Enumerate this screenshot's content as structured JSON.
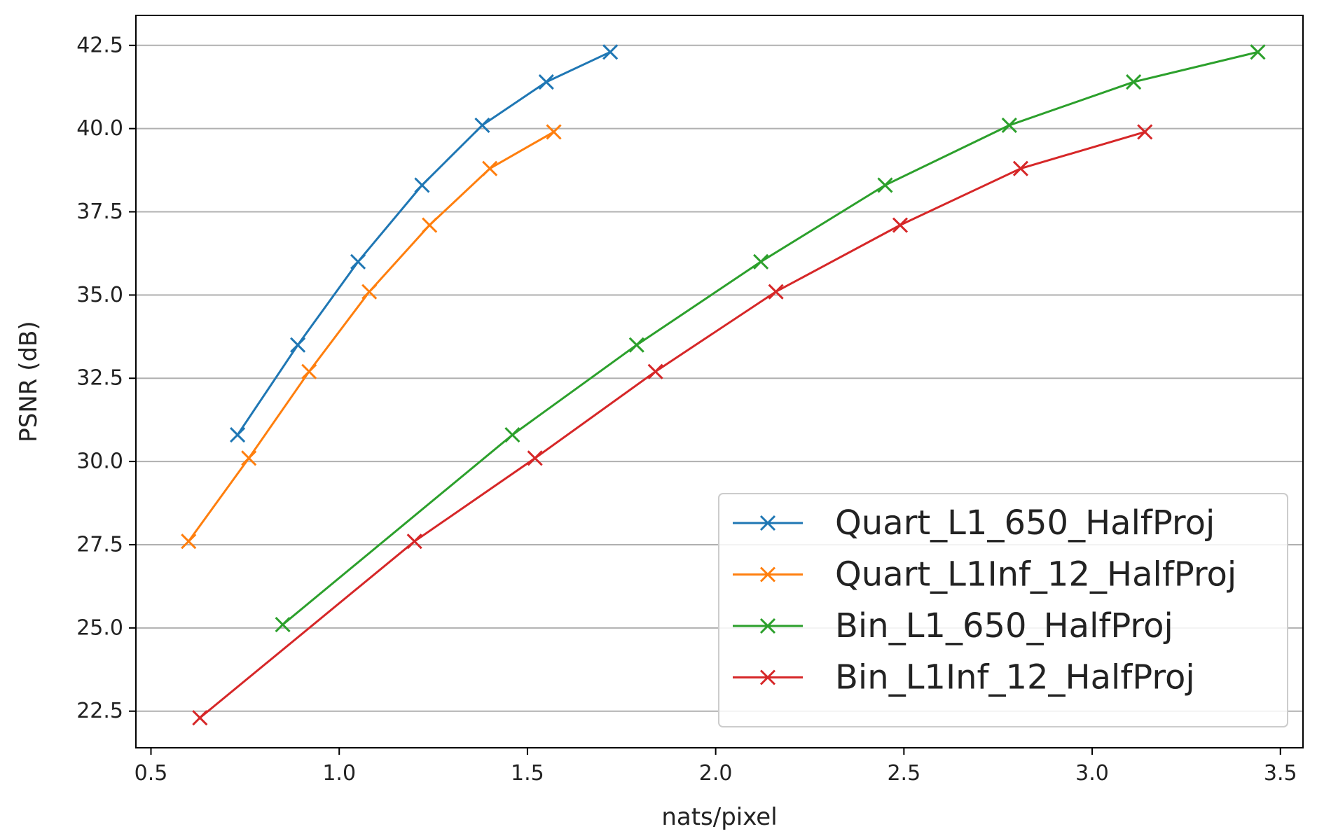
{
  "chart_data": {
    "type": "line",
    "title": "",
    "xlabel": "nats/pixel",
    "ylabel": "PSNR (dB)",
    "xlim": [
      0.46,
      3.56
    ],
    "ylim": [
      21.4,
      43.4
    ],
    "xticks": [
      0.5,
      1.0,
      1.5,
      2.0,
      2.5,
      3.0,
      3.5
    ],
    "xtick_labels": [
      "0.5",
      "1.0",
      "1.5",
      "2.0",
      "2.5",
      "3.0",
      "3.5"
    ],
    "yticks": [
      22.5,
      25.0,
      27.5,
      30.0,
      32.5,
      35.0,
      37.5,
      40.0,
      42.5
    ],
    "ytick_labels": [
      "22.5",
      "25.0",
      "27.5",
      "30.0",
      "32.5",
      "35.0",
      "37.5",
      "40.0",
      "42.5"
    ],
    "grid": "y",
    "legend_position": "lower-right",
    "marker": "x",
    "series": [
      {
        "name": "Quart_L1_650_HalfProj",
        "color": "#1f77b4",
        "x": [
          0.73,
          0.89,
          1.05,
          1.22,
          1.38,
          1.55,
          1.72
        ],
        "y": [
          30.8,
          33.5,
          36.0,
          38.3,
          40.1,
          41.4,
          42.3
        ]
      },
      {
        "name": "Quart_L1Inf_12_HalfProj",
        "color": "#ff7f0e",
        "x": [
          0.6,
          0.76,
          0.92,
          1.08,
          1.24,
          1.4,
          1.57
        ],
        "y": [
          27.6,
          30.1,
          32.7,
          35.1,
          37.1,
          38.8,
          39.9
        ]
      },
      {
        "name": "Bin_L1_650_HalfProj",
        "color": "#2ca02c",
        "x": [
          0.85,
          1.46,
          1.79,
          2.12,
          2.45,
          2.78,
          3.11,
          3.44
        ],
        "y": [
          25.1,
          30.8,
          33.5,
          36.0,
          38.3,
          40.1,
          41.4,
          42.3
        ]
      },
      {
        "name": "Bin_L1Inf_12_HalfProj",
        "color": "#d62728",
        "x": [
          0.63,
          1.2,
          1.52,
          1.84,
          2.16,
          2.49,
          2.81,
          3.14
        ],
        "y": [
          22.3,
          27.6,
          30.1,
          32.7,
          35.1,
          37.1,
          38.8,
          39.9
        ]
      }
    ]
  }
}
